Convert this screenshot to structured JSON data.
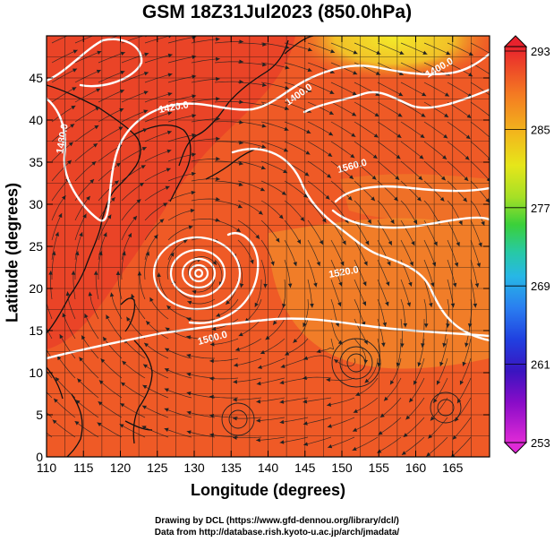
{
  "title": "GSM 18Z31Jul2023 (850.0hPa)",
  "x_axis": {
    "label": "Longitude (degrees)",
    "range": [
      110,
      170
    ],
    "ticks": [
      110,
      115,
      120,
      125,
      130,
      135,
      140,
      145,
      150,
      155,
      160,
      165
    ]
  },
  "y_axis": {
    "label": "Latitude  (degrees)",
    "range": [
      0,
      50
    ],
    "ticks": [
      0,
      5,
      10,
      15,
      20,
      25,
      30,
      35,
      40,
      45
    ]
  },
  "colorbar": {
    "values": [
      "293",
      "285",
      "277",
      "269",
      "261",
      "253"
    ],
    "colors": [
      "#e8222d",
      "#f47a22",
      "#f2b81c",
      "#e6e61a",
      "#a6e026",
      "#3ad03a",
      "#27c9a6",
      "#27b7e6",
      "#2a7ef0",
      "#2040e0",
      "#3a14c0",
      "#8a0cc8",
      "#e02ad6"
    ]
  },
  "contours": [
    {
      "label": "1400.0"
    },
    {
      "label": "1420.0"
    },
    {
      "label": "1480.0"
    },
    {
      "label": "1500.0"
    },
    {
      "label": "1520.0"
    },
    {
      "label": "1560.0"
    }
  ],
  "field_colors": {
    "land": "#e8422b",
    "ocean": "#ef5a26",
    "warm": "#e63328",
    "cool": "#f29a2a",
    "cold": "#f2dd28"
  },
  "credits": {
    "line1": "Drawing by DCL (https://www.gfd-dennou.org/library/dcl/)",
    "line2": "Data from http://database.rish.kyoto-u.ac.jp/arch/jmadata/"
  }
}
